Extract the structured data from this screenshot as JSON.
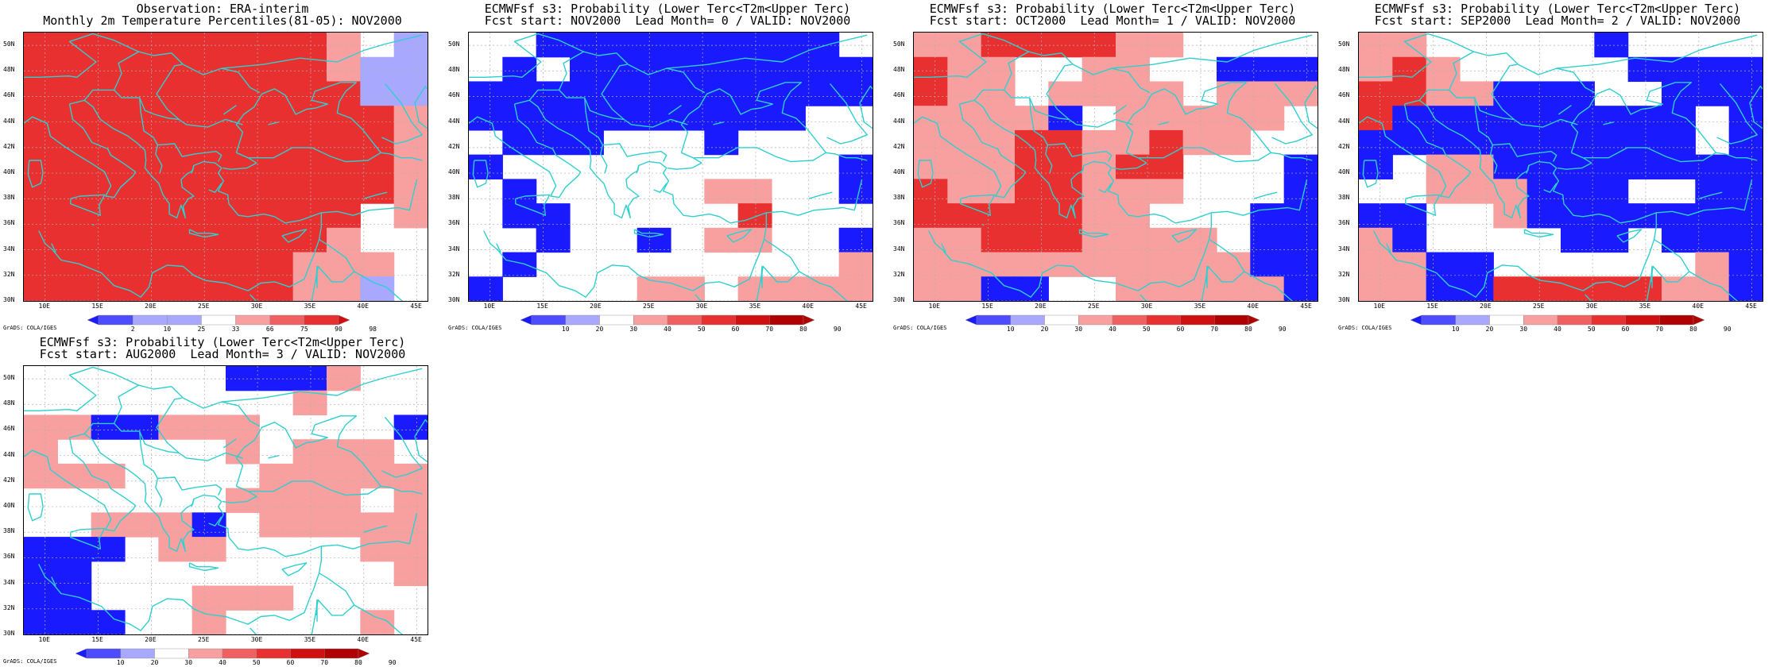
{
  "colors": {
    "cool3": "#1a1aff",
    "cool2": "#4d4dff",
    "cool1": "#a8a8ff",
    "neutral": "#ffffff",
    "warm1": "#f8a0a0",
    "warm2": "#f06060",
    "warm3": "#e83030",
    "warm4": "#d01010",
    "warm5": "#b00000",
    "coast": "#2fcfcf",
    "grid": "#b0b0b0"
  },
  "common": {
    "lat_labels": [
      "50N",
      "48N",
      "46N",
      "44N",
      "42N",
      "40N",
      "38N",
      "36N",
      "34N",
      "32N",
      "30N"
    ],
    "lon_labels": [
      "10E",
      "15E",
      "20E",
      "25E",
      "30E",
      "35E",
      "40E",
      "45E"
    ],
    "grads_credit": "GrADS: COLA/IGES",
    "lon_range": [
      8,
      46
    ],
    "lat_range": [
      30,
      51
    ]
  },
  "chart_data": [
    {
      "type": "heatmap",
      "title_line1": "Observation: ERA-interim",
      "title_line2": "Monthly 2m Temperature Percentiles(81-05): NOV2000",
      "colorbar_labels": [
        "2",
        "10",
        "25",
        "33",
        "66",
        "75",
        "90",
        "98"
      ],
      "colorbar_colors": [
        "cool3",
        "cool2",
        "cool1",
        "cool1",
        "neutral",
        "warm1",
        "warm2",
        "warm3",
        "warm4"
      ],
      "grid": [
        "WWWWWWWWWN.C",
        "WWWWWWWWWNCC",
        "WWWWWWWWWWCC",
        "WWWWWWWWWWWN",
        "WWWWWWWWWWWN",
        "WWWWWWWWWWWN",
        "WWWWWWWWWWWN",
        "WWWWWWWWWW.N",
        "WWWWWWWWWN..",
        "WWWWWWWWNNN.",
        "WWWWWWWWNNC."
      ]
    },
    {
      "type": "heatmap",
      "title_line1": "ECMWFsf s3: Probability (Lower Terc<T2m<Upper Terc)",
      "title_line2": "Fcst start: NOV2000  Lead Month= 0 / VALID: NOV2000",
      "colorbar_labels": [
        "10",
        "20",
        "30",
        "40",
        "50",
        "60",
        "70",
        "80",
        "90"
      ],
      "colorbar_colors": [
        "cool3",
        "cool2",
        "cool1",
        "neutral",
        "warm1",
        "warm2",
        "warm3",
        "warm4",
        "warm5",
        "warm5"
      ],
      "grid": [
        "..BBBBBBBBB.",
        ".B.BBBBBBBBB",
        "BBBBBBBBBBBB",
        "BBBBBBBBBB..",
        ".BBB...B....",
        "B..........B",
        ".B.....PP..B",
        ".BB.....R...",
        "..B..B.PP..B",
        ".B.........P",
        "B....PP.PPPP"
      ]
    },
    {
      "type": "heatmap",
      "title_line1": "ECMWFsf s3: Probability (Lower Terc<T2m<Upper Terc)",
      "title_line2": "Fcst start: OCT2000  Lead Month= 1 / VALID: NOV2000",
      "colorbar_labels": [
        "10",
        "20",
        "30",
        "40",
        "50",
        "60",
        "70",
        "80",
        "90"
      ],
      "colorbar_colors": [
        "cool3",
        "cool2",
        "cool1",
        "neutral",
        "warm1",
        "warm2",
        "warm3",
        "warm4",
        "warm5",
        "warm5"
      ],
      "grid": [
        "PPRRRRPP....",
        "RPP..PP..BBB",
        "RPP.PPPP.PPP",
        "PPPPB.PPPPP.",
        "PPPRRPPRPP..",
        "PPPRRPRR...B",
        "RPPRRPPP...B",
        "RRRRRPP...BB",
        "PPRRRPPPP.BB",
        "PPPPPPPPPPBB",
        "PPBB..PPPPPB"
      ]
    },
    {
      "type": "heatmap",
      "title_line1": "ECMWFsf s3: Probability (Lower Terc<T2m<Upper Terc)",
      "title_line2": "Fcst start: SEP2000  Lead Month= 2 / VALID: NOV2000",
      "colorbar_labels": [
        "10",
        "20",
        "30",
        "40",
        "50",
        "60",
        "70",
        "80",
        "90"
      ],
      "colorbar_colors": [
        "cool3",
        "cool2",
        "cool1",
        "neutral",
        "warm1",
        "warm2",
        "warm3",
        "warm4",
        "warm5",
        "warm5"
      ],
      "grid": [
        "PP.....B....",
        "PRP.....BBBB",
        "RRPPBBB..BBB",
        "RBBBBBBBBB.B",
        "BBBBBBBBBB.B",
        "B.PPBBBBBBBB",
        "..PPPBBB..BB",
        "BB..PBBBBBBB",
        "PB....BB.BBB",
        "PPBB......PB",
        "PPBBRRRRRPPB"
      ]
    },
    {
      "type": "heatmap",
      "title_line1": "ECMWFsf s3: Probability (Lower Terc<T2m<Upper Terc)",
      "title_line2": "Fcst start: AUG2000  Lead Month= 3 / VALID: NOV2000",
      "colorbar_labels": [
        "10",
        "20",
        "30",
        "40",
        "50",
        "60",
        "70",
        "80",
        "90"
      ],
      "colorbar_colors": [
        "cool3",
        "cool2",
        "cool1",
        "neutral",
        "warm1",
        "warm2",
        "warm3",
        "warm4",
        "warm5",
        "warm5"
      ],
      "grid": [
        "......BBBP..",
        "........P...",
        "PPBBPPP....B",
        "P.....P.PPP.",
        "PPP....PPPPP",
        "......PPPP.P",
        "..PPPB.PPPPP",
        "BBB.PP....PP",
        "BB.........P",
        "BB...PPP....",
        "BBB..P....P."
      ]
    }
  ]
}
